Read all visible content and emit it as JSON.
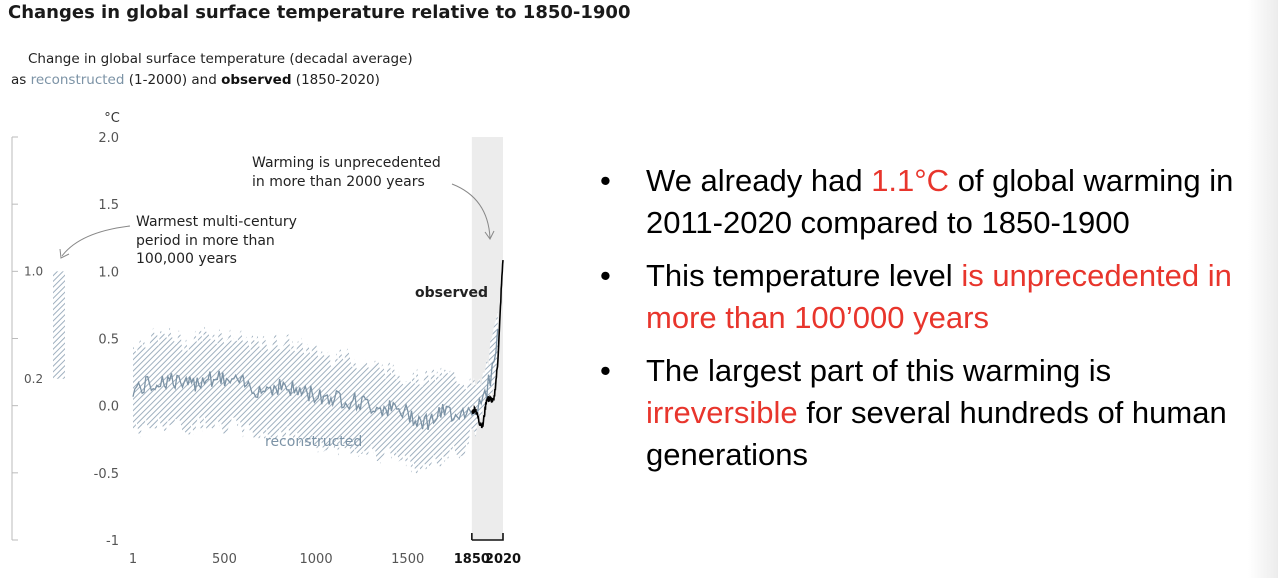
{
  "title": "Changes in global surface temperature relative to 1850-1900",
  "subtitle": {
    "line1": "Change in global surface temperature (decadal average)",
    "line2_prefix": "as",
    "reconstructed_word": "reconstructed",
    "line2_mid": "(1-2000) and",
    "observed_word": "observed",
    "line2_suffix": "(1850-2020)"
  },
  "colors": {
    "reconstructed": "#7c93a6",
    "observed": "#000000",
    "highlight": "#e8352c",
    "shaded_period": "#ececec"
  },
  "chart_data": {
    "type": "line",
    "ylabel": "°C",
    "ylim": [
      -1,
      2
    ],
    "xlim": [
      1,
      2020
    ],
    "yticks": [
      "2.0",
      "1.5",
      "1.0",
      "0.5",
      "0.0",
      "-0.5",
      "-1"
    ],
    "xticks": [
      "1",
      "500",
      "1000",
      "1500",
      "1850",
      "2020"
    ],
    "bold_xticks": [
      "1850",
      "2020"
    ],
    "left_scale_labels": [
      "1.0",
      "0.2"
    ],
    "warmest_period_range": [
      0.2,
      1.0
    ],
    "shaded_period": [
      1850,
      2020
    ],
    "series": [
      {
        "name": "reconstructed",
        "x": [
          1,
          100,
          200,
          300,
          400,
          500,
          600,
          700,
          800,
          900,
          1000,
          1100,
          1200,
          1300,
          1400,
          1500,
          1600,
          1700,
          1800,
          1850,
          1900,
          1950,
          2000
        ],
        "y": [
          0.12,
          0.16,
          0.2,
          0.14,
          0.22,
          0.19,
          0.16,
          0.12,
          0.15,
          0.11,
          0.08,
          0.06,
          0.04,
          0.0,
          -0.02,
          -0.06,
          -0.12,
          -0.05,
          -0.05,
          -0.02,
          0.0,
          0.2,
          0.6
        ],
        "upper": [
          0.45,
          0.5,
          0.52,
          0.46,
          0.55,
          0.52,
          0.48,
          0.45,
          0.48,
          0.44,
          0.4,
          0.37,
          0.35,
          0.3,
          0.26,
          0.22,
          0.2,
          0.23,
          0.2,
          0.14,
          0.16,
          0.4,
          0.7
        ],
        "lower": [
          -0.18,
          -0.15,
          -0.12,
          -0.18,
          -0.1,
          -0.14,
          -0.17,
          -0.22,
          -0.2,
          -0.25,
          -0.28,
          -0.3,
          -0.32,
          -0.34,
          -0.36,
          -0.42,
          -0.46,
          -0.38,
          -0.33,
          -0.2,
          -0.12,
          0.04,
          0.45
        ]
      },
      {
        "name": "observed",
        "x": [
          1850,
          1870,
          1890,
          1910,
          1930,
          1950,
          1970,
          1990,
          2000,
          2010,
          2020
        ],
        "y": [
          -0.05,
          -0.02,
          -0.12,
          -0.15,
          0.05,
          0.05,
          0.03,
          0.3,
          0.55,
          0.85,
          1.1
        ]
      }
    ],
    "annotations": {
      "unprecedented_line1": "Warming is unprecedented",
      "unprecedented_line2": "in more than 2000 years",
      "warmest_line1": "Warmest multi-century",
      "warmest_line2": "period in more than",
      "warmest_line3": "100,000 years",
      "observed_label": "observed",
      "reconstructed_label": "reconstructed"
    }
  },
  "bullets": [
    {
      "pre": "We already had ",
      "hl": "1.1°C",
      "post": " of global warming in 2011-2020 compared to 1850-1900"
    },
    {
      "pre": "This temperature level ",
      "hl": "is unprecedented in more than 100’000 years",
      "post": ""
    },
    {
      "pre": "The largest part of this warming is ",
      "hl": "irreversible",
      "post": " for several hundreds of human generations"
    }
  ]
}
